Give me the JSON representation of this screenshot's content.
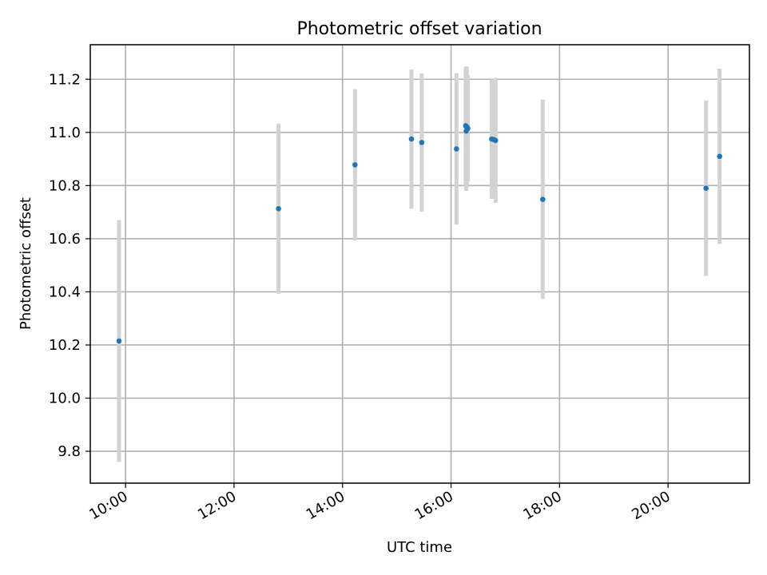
{
  "chart_data": {
    "type": "scatter",
    "title": "Photometric offset variation",
    "xlabel": "UTC time",
    "ylabel": "Photometric offset",
    "x_tick_labels": [
      "10:00",
      "12:00",
      "14:00",
      "16:00",
      "18:00",
      "20:00"
    ],
    "x_ticks_hours": [
      10,
      12,
      14,
      16,
      18,
      20
    ],
    "xlim_hours": [
      9.35,
      21.5
    ],
    "y_tick_labels": [
      "9.8",
      "10.0",
      "10.2",
      "10.4",
      "10.6",
      "10.8",
      "11.0",
      "11.2"
    ],
    "y_ticks": [
      9.8,
      10.0,
      10.2,
      10.4,
      10.6,
      10.8,
      11.0,
      11.2
    ],
    "ylim": [
      9.68,
      11.33
    ],
    "grid": true,
    "colors": {
      "points": "#1f77b4",
      "error_bars": "#d3d3d3",
      "grid": "#b0b0b0"
    },
    "series": [
      {
        "points": [
          {
            "time": "09:53",
            "t": 9.88,
            "y": 10.215,
            "err": 0.455
          },
          {
            "time": "12:49",
            "t": 12.82,
            "y": 10.713,
            "err": 0.32
          },
          {
            "time": "14:14",
            "t": 14.23,
            "y": 10.878,
            "err": 0.285
          },
          {
            "time": "15:16",
            "t": 15.27,
            "y": 10.975,
            "err": 0.262
          },
          {
            "time": "15:27",
            "t": 15.46,
            "y": 10.962,
            "err": 0.26
          },
          {
            "time": "16:06",
            "t": 16.1,
            "y": 10.938,
            "err": 0.285
          },
          {
            "time": "16:16",
            "t": 16.27,
            "y": 11.025,
            "err": 0.222
          },
          {
            "time": "16:18",
            "t": 16.29,
            "y": 11.02,
            "err": 0.228
          },
          {
            "time": "16:17",
            "t": 16.28,
            "y": 11.005,
            "err": 0.225
          },
          {
            "time": "16:19",
            "t": 16.31,
            "y": 11.015,
            "err": 0.2
          },
          {
            "time": "16:45",
            "t": 16.75,
            "y": 10.975,
            "err": 0.225
          },
          {
            "time": "16:49",
            "t": 16.82,
            "y": 10.97,
            "err": 0.235
          },
          {
            "time": "16:47",
            "t": 16.79,
            "y": 10.973,
            "err": 0.22
          },
          {
            "time": "17:41",
            "t": 17.69,
            "y": 10.748,
            "err": 0.375
          },
          {
            "time": "20:42",
            "t": 20.7,
            "y": 10.79,
            "err": 0.33
          },
          {
            "time": "20:57",
            "t": 20.95,
            "y": 10.91,
            "err": 0.33
          }
        ]
      }
    ]
  }
}
